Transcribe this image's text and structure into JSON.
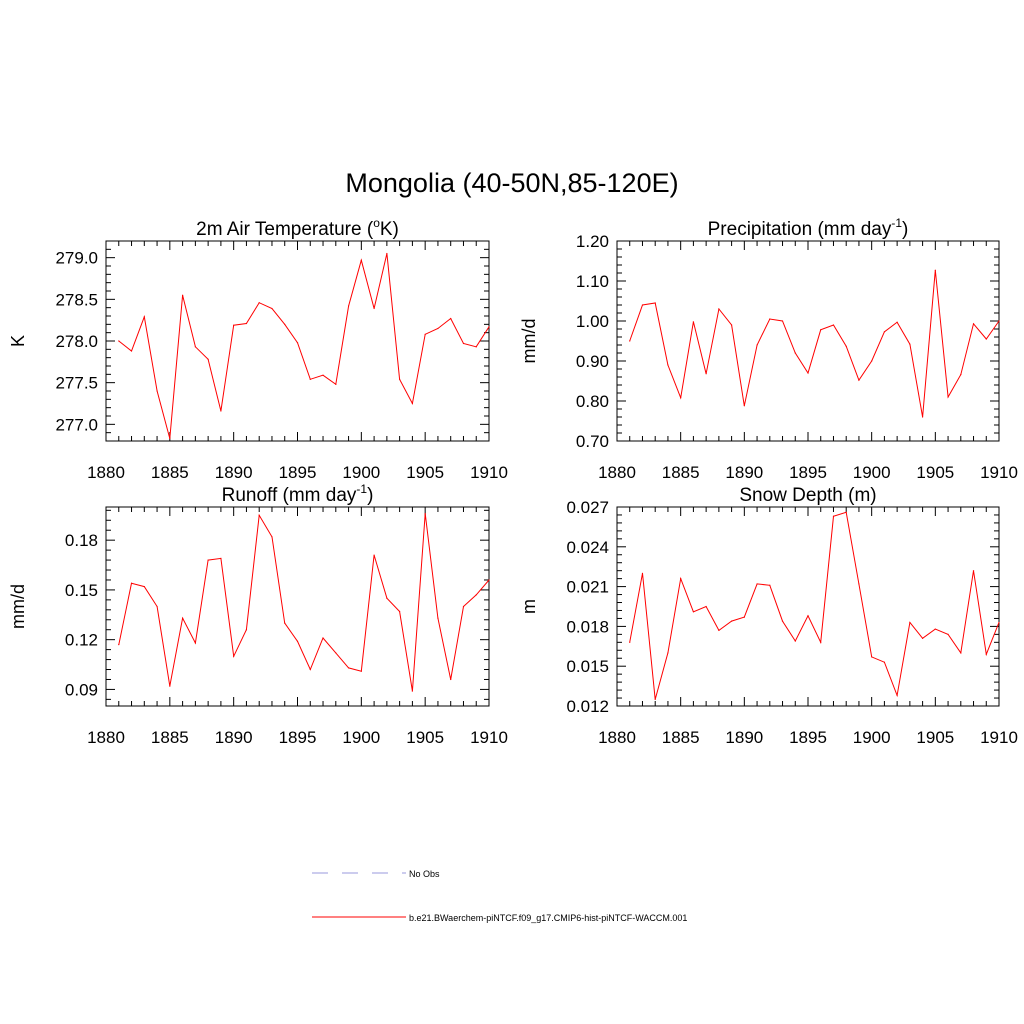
{
  "figure": {
    "title": "Mongolia (40-50N,85-120E)",
    "line_color": "#ff0000",
    "obs_color": "#9999dd"
  },
  "legend": {
    "entries": [
      {
        "label": "No Obs",
        "style": "dashed"
      },
      {
        "label": "b.e21.BWaerchem-piNTCF.f09_g17.CMIP6-hist-piNTCF-WACCM.001",
        "style": "solid"
      }
    ]
  },
  "chart_data": [
    {
      "type": "line",
      "title": "2m Air Temperature (",
      "title_sup1": "o",
      "title_mid": "K)",
      "title_sup2": "",
      "title_end": "",
      "ylabel": "K",
      "xlim": [
        1880,
        1910
      ],
      "ylim": [
        276.8,
        279.2
      ],
      "yticks": [
        277.0,
        277.5,
        278.0,
        278.5,
        279.0
      ],
      "ytick_labels": [
        "277.0",
        "277.5",
        "278.0",
        "278.5",
        "279.0"
      ],
      "xticks": [
        1880,
        1885,
        1890,
        1895,
        1900,
        1905,
        1910
      ],
      "x": [
        1881,
        1882,
        1883,
        1884,
        1885,
        1886,
        1887,
        1888,
        1889,
        1890,
        1891,
        1892,
        1893,
        1894,
        1895,
        1896,
        1897,
        1898,
        1899,
        1900,
        1901,
        1902,
        1903,
        1904,
        1905,
        1906,
        1907,
        1908,
        1909,
        1910
      ],
      "y": [
        278.0,
        277.88,
        278.29,
        277.4,
        276.83,
        278.55,
        277.93,
        277.78,
        277.16,
        278.19,
        278.21,
        278.46,
        278.39,
        278.2,
        277.98,
        277.54,
        277.59,
        277.48,
        278.42,
        278.97,
        278.39,
        279.05,
        277.54,
        277.25,
        278.08,
        278.15,
        278.27,
        277.97,
        277.93,
        278.17
      ]
    },
    {
      "type": "line",
      "title": "Precipitation (mm day",
      "title_sup1": "-1",
      "title_mid": ")",
      "title_sup2": "",
      "title_end": "",
      "ylabel": "mm/d",
      "xlim": [
        1880,
        1910
      ],
      "ylim": [
        0.7,
        1.2
      ],
      "yticks": [
        0.7,
        0.8,
        0.9,
        1.0,
        1.1,
        1.2
      ],
      "ytick_labels": [
        "0.70",
        "0.80",
        "0.90",
        "1.00",
        "1.10",
        "1.20"
      ],
      "xticks": [
        1880,
        1885,
        1890,
        1895,
        1900,
        1905,
        1910
      ],
      "x": [
        1881,
        1882,
        1883,
        1884,
        1885,
        1886,
        1887,
        1888,
        1889,
        1890,
        1891,
        1892,
        1893,
        1894,
        1895,
        1896,
        1897,
        1898,
        1899,
        1900,
        1901,
        1902,
        1903,
        1904,
        1905,
        1906,
        1907,
        1908,
        1909,
        1910
      ],
      "y": [
        0.95,
        1.04,
        1.045,
        0.89,
        0.808,
        0.998,
        0.868,
        1.03,
        0.99,
        0.788,
        0.94,
        1.005,
        1.0,
        0.92,
        0.87,
        0.978,
        0.99,
        0.937,
        0.852,
        0.9,
        0.973,
        0.997,
        0.942,
        0.76,
        1.127,
        0.81,
        0.866,
        0.993,
        0.955,
        1.0
      ]
    },
    {
      "type": "line",
      "title": "Runoff (mm day",
      "title_sup1": "-1",
      "title_mid": ")",
      "title_sup2": "",
      "title_end": "",
      "ylabel": "mm/d",
      "xlim": [
        1880,
        1910
      ],
      "ylim": [
        0.08,
        0.2
      ],
      "yticks": [
        0.09,
        0.12,
        0.15,
        0.18
      ],
      "ytick_labels": [
        "0.09",
        "0.12",
        "0.15",
        "0.18"
      ],
      "xticks": [
        1880,
        1885,
        1890,
        1895,
        1900,
        1905,
        1910
      ],
      "x": [
        1881,
        1882,
        1883,
        1884,
        1885,
        1886,
        1887,
        1888,
        1889,
        1890,
        1891,
        1892,
        1893,
        1894,
        1895,
        1896,
        1897,
        1898,
        1899,
        1900,
        1901,
        1902,
        1903,
        1904,
        1905,
        1906,
        1907,
        1908,
        1909,
        1910
      ],
      "y": [
        0.117,
        0.154,
        0.152,
        0.14,
        0.092,
        0.133,
        0.118,
        0.168,
        0.169,
        0.11,
        0.126,
        0.195,
        0.182,
        0.13,
        0.119,
        0.102,
        0.121,
        0.112,
        0.103,
        0.101,
        0.171,
        0.145,
        0.137,
        0.089,
        0.196,
        0.133,
        0.096,
        0.14,
        0.147,
        0.156
      ]
    },
    {
      "type": "line",
      "title": "Snow Depth (m)",
      "title_sup1": "",
      "title_mid": "",
      "title_sup2": "",
      "title_end": "",
      "ylabel": "m",
      "xlim": [
        1880,
        1910
      ],
      "ylim": [
        0.012,
        0.027
      ],
      "yticks": [
        0.012,
        0.015,
        0.018,
        0.021,
        0.024,
        0.027
      ],
      "ytick_labels": [
        "0.012",
        "0.015",
        "0.018",
        "0.021",
        "0.024",
        "0.027"
      ],
      "xticks": [
        1880,
        1885,
        1890,
        1895,
        1900,
        1905,
        1910
      ],
      "x": [
        1881,
        1882,
        1883,
        1884,
        1885,
        1886,
        1887,
        1888,
        1889,
        1890,
        1891,
        1892,
        1893,
        1894,
        1895,
        1896,
        1897,
        1898,
        1899,
        1900,
        1901,
        1902,
        1903,
        1904,
        1905,
        1906,
        1907,
        1908,
        1909,
        1910
      ],
      "y": [
        0.0168,
        0.022,
        0.0125,
        0.016,
        0.0216,
        0.0191,
        0.0195,
        0.0177,
        0.0184,
        0.0187,
        0.0212,
        0.0211,
        0.0184,
        0.0169,
        0.0188,
        0.0168,
        0.0263,
        0.0266,
        0.0212,
        0.0157,
        0.0153,
        0.0128,
        0.0183,
        0.0171,
        0.0178,
        0.0174,
        0.016,
        0.0222,
        0.0159,
        0.0183
      ]
    }
  ]
}
